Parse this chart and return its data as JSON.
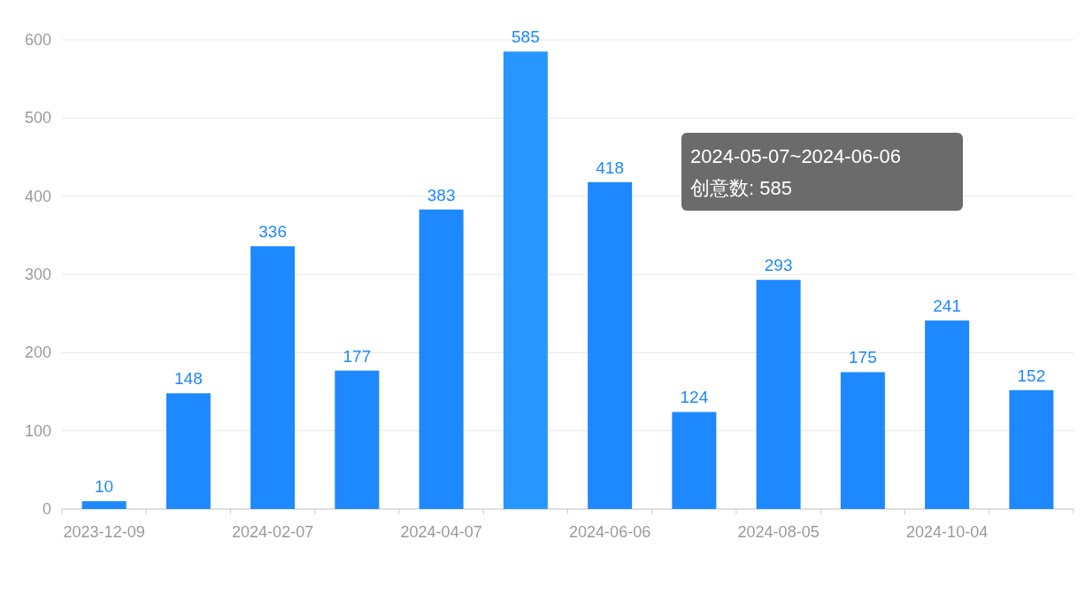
{
  "chart_data": {
    "type": "bar",
    "categories": [
      "2023-12-09",
      null,
      "2024-02-07",
      null,
      "2024-04-07",
      null,
      "2024-06-06",
      null,
      "2024-08-05",
      null,
      "2024-10-04",
      null
    ],
    "values": [
      10,
      148,
      336,
      177,
      383,
      585,
      418,
      124,
      293,
      175,
      241,
      152
    ],
    "colors": [
      "#1e88ff",
      "#1e88ff",
      "#1e88ff",
      "#1e88ff",
      "#1e88ff",
      "#2896ff",
      "#1e88ff",
      "#1e88ff",
      "#1e88ff",
      "#1e88ff",
      "#1e88ff",
      "#1e88ff"
    ],
    "ylim": [
      0,
      600
    ],
    "yticks": [
      0,
      100,
      200,
      300,
      400,
      500,
      600
    ],
    "grid": "y",
    "data_labels": true,
    "annotations": [
      "2024-05-07~2024-06-06",
      "创意数: 585"
    ]
  }
}
